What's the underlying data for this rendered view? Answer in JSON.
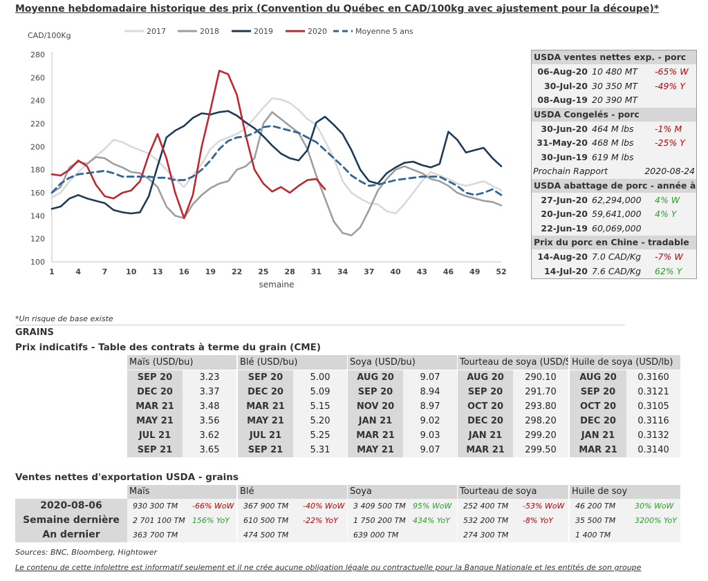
{
  "title": "Moyenne hebdomadaire historique des prix (Convention du Québec en CAD/100kg avec ajustement pour la découpe)*",
  "chart_data": {
    "type": "line",
    "ylabel": "CAD/100Kg",
    "xlabel": "semaine",
    "ylim": [
      100,
      280
    ],
    "yticks": [
      100,
      120,
      140,
      160,
      180,
      200,
      220,
      240,
      260,
      280
    ],
    "xlim": [
      1,
      52
    ],
    "xticks": [
      1,
      4,
      7,
      10,
      13,
      16,
      19,
      22,
      25,
      28,
      31,
      34,
      37,
      40,
      43,
      46,
      49,
      52
    ],
    "legend_position": "top",
    "grid": false,
    "series": [
      {
        "name": "2017",
        "color": "#d9d9d9",
        "dash": false,
        "x": [
          1,
          2,
          3,
          4,
          5,
          6,
          7,
          8,
          9,
          10,
          11,
          12,
          13,
          14,
          15,
          16,
          17,
          18,
          19,
          20,
          21,
          22,
          23,
          24,
          25,
          26,
          27,
          28,
          29,
          30,
          31,
          32,
          33,
          34,
          35,
          36,
          37,
          38,
          39,
          40,
          41,
          42,
          43,
          44,
          45,
          46,
          47,
          48,
          49,
          50,
          51,
          52
        ],
        "values": [
          156,
          160,
          170,
          178,
          185,
          192,
          198,
          206,
          204,
          200,
          197,
          194,
          188,
          180,
          172,
          165,
          175,
          185,
          198,
          205,
          208,
          211,
          216,
          225,
          234,
          242,
          241,
          238,
          232,
          224,
          219,
          205,
          190,
          170,
          160,
          155,
          151,
          150,
          144,
          142,
          150,
          160,
          170,
          178,
          175,
          172,
          168,
          166,
          168,
          170,
          166,
          162
        ]
      },
      {
        "name": "2018",
        "color": "#9e9e9e",
        "dash": false,
        "x": [
          1,
          2,
          3,
          4,
          5,
          6,
          7,
          8,
          9,
          10,
          11,
          12,
          13,
          14,
          15,
          16,
          17,
          18,
          19,
          20,
          21,
          22,
          23,
          24,
          25,
          26,
          27,
          28,
          29,
          30,
          31,
          32,
          33,
          34,
          35,
          36,
          37,
          38,
          39,
          40,
          41,
          42,
          43,
          44,
          45,
          46,
          47,
          48,
          49,
          50,
          51,
          52
        ],
        "values": [
          160,
          165,
          182,
          187,
          185,
          191,
          190,
          185,
          182,
          178,
          177,
          172,
          165,
          148,
          140,
          138,
          150,
          158,
          164,
          168,
          170,
          180,
          183,
          190,
          220,
          230,
          224,
          218,
          212,
          198,
          175,
          155,
          135,
          125,
          123,
          130,
          145,
          162,
          172,
          180,
          183,
          180,
          177,
          172,
          170,
          166,
          160,
          157,
          155,
          153,
          152,
          149
        ]
      },
      {
        "name": "2019",
        "color": "#1b3a57",
        "dash": false,
        "x": [
          1,
          2,
          3,
          4,
          5,
          6,
          7,
          8,
          9,
          10,
          11,
          12,
          13,
          14,
          15,
          16,
          17,
          18,
          19,
          20,
          21,
          22,
          23,
          24,
          25,
          26,
          27,
          28,
          29,
          30,
          31,
          32,
          33,
          34,
          35,
          36,
          37,
          38,
          39,
          40,
          41,
          42,
          43,
          44,
          45,
          46,
          47,
          48,
          49,
          50,
          51,
          52
        ],
        "values": [
          146,
          148,
          155,
          158,
          155,
          153,
          151,
          145,
          143,
          142,
          143,
          157,
          183,
          208,
          214,
          218,
          225,
          229,
          228,
          230,
          231,
          227,
          221,
          216,
          209,
          201,
          194,
          190,
          188,
          197,
          221,
          226,
          219,
          211,
          197,
          180,
          170,
          168,
          177,
          182,
          186,
          187,
          184,
          182,
          185,
          213,
          206,
          195,
          197,
          199,
          190,
          183
        ]
      },
      {
        "name": "2020",
        "color": "#c0262d",
        "dash": false,
        "x": [
          1,
          2,
          3,
          4,
          5,
          6,
          7,
          8,
          9,
          10,
          11,
          12,
          13,
          14,
          15,
          16,
          17,
          18,
          19,
          20,
          21,
          22,
          23,
          24,
          25,
          26,
          27,
          28,
          29,
          30,
          31,
          32
        ],
        "values": [
          176,
          175,
          180,
          188,
          183,
          167,
          157,
          155,
          160,
          162,
          170,
          193,
          211,
          190,
          160,
          138,
          158,
          200,
          232,
          266,
          263,
          245,
          210,
          180,
          168,
          161,
          165,
          160,
          166,
          171,
          172,
          163
        ]
      },
      {
        "name": "Moyenne 5 ans",
        "color": "#2f6594",
        "dash": true,
        "x": [
          1,
          2,
          3,
          4,
          5,
          6,
          7,
          8,
          9,
          10,
          11,
          12,
          13,
          14,
          15,
          16,
          17,
          18,
          19,
          20,
          21,
          22,
          23,
          24,
          25,
          26,
          27,
          28,
          29,
          30,
          31,
          32,
          33,
          34,
          35,
          36,
          37,
          38,
          39,
          40,
          41,
          42,
          43,
          44,
          45,
          46,
          47,
          48,
          49,
          50,
          51,
          52
        ],
        "values": [
          160,
          168,
          173,
          176,
          177,
          178,
          179,
          177,
          174,
          174,
          174,
          174,
          173,
          173,
          171,
          171,
          174,
          180,
          188,
          198,
          205,
          208,
          209,
          212,
          217,
          218,
          216,
          214,
          212,
          208,
          204,
          197,
          190,
          183,
          175,
          170,
          166,
          167,
          169,
          171,
          172,
          173,
          174,
          174,
          174,
          170,
          166,
          160,
          158,
          160,
          163,
          158
        ]
      }
    ]
  },
  "usda": {
    "sections": [
      {
        "heading": "USDA ventes nettes exp. - porc",
        "rows": [
          {
            "date": "06-Aug-20",
            "value": "10 480  MT",
            "change": "-65% W",
            "color": "red"
          },
          {
            "date": "30-Jul-20",
            "value": "30 350  MT",
            "change": "-49% Y",
            "color": "red"
          },
          {
            "date": "08-Aug-19",
            "value": "20 390  MT",
            "change": "",
            "color": ""
          }
        ]
      },
      {
        "heading": "USDA Congelés - porc",
        "rows": [
          {
            "date": "30-Jun-20",
            "value": "464 M lbs",
            "change": "-1% M",
            "color": "red"
          },
          {
            "date": "31-May-20",
            "value": "468 M lbs",
            "change": "-25% Y",
            "color": "red"
          },
          {
            "date": "30-Jun-19",
            "value": "619 M lbs",
            "change": "",
            "color": ""
          }
        ]
      },
      {
        "heading": "USDA abattage de porc - année à date",
        "rows": [
          {
            "date": "27-Jun-20",
            "value": "62,294,000",
            "change": "4% W",
            "color": "green"
          },
          {
            "date": "20-Jun-20",
            "value": "59,641,000",
            "change": "4% Y",
            "color": "green"
          },
          {
            "date": "22-Jun-19",
            "value": "60,069,000",
            "change": "",
            "color": ""
          }
        ]
      },
      {
        "heading": "Prix du porc en Chine - tradable",
        "rows": [
          {
            "date": "14-Aug-20",
            "value": "7.0 CAD/Kg",
            "change": "-7% W",
            "color": "red"
          },
          {
            "date": "14-Jul-20",
            "value": "7.6 CAD/Kg",
            "change": "62% Y",
            "color": "green"
          }
        ]
      }
    ],
    "next_report_label": "Prochain Rapport",
    "next_report_date": "2020-08-24"
  },
  "risk_note": "*Un risque de base existe",
  "grains_title": "GRAINS",
  "cme_title": "Prix indicatifs - Table des contrats à terme du grain (CME)",
  "cme_columns": [
    {
      "heading": "Maïs (USD/bu)",
      "rows": [
        [
          "SEP 20",
          "3.23"
        ],
        [
          "DEC 20",
          "3.37"
        ],
        [
          "MAR 21",
          "3.48"
        ],
        [
          "MAY 21",
          "3.56"
        ],
        [
          "JUL 21",
          "3.62"
        ],
        [
          "SEP 21",
          "3.65"
        ]
      ]
    },
    {
      "heading": "Blé (USD/bu)",
      "rows": [
        [
          "SEP 20",
          "5.00"
        ],
        [
          "DEC 20",
          "5.09"
        ],
        [
          "MAR 21",
          "5.15"
        ],
        [
          "MAY 21",
          "5.20"
        ],
        [
          "JUL 21",
          "5.25"
        ],
        [
          "SEP 21",
          "5.31"
        ]
      ]
    },
    {
      "heading": "Soya (USD/bu)",
      "rows": [
        [
          "AUG 20",
          "9.07"
        ],
        [
          "SEP 20",
          "8.94"
        ],
        [
          "NOV 20",
          "8.97"
        ],
        [
          "JAN 21",
          "9.02"
        ],
        [
          "MAR 21",
          "9.03"
        ],
        [
          "MAY 21",
          "9.07"
        ]
      ]
    },
    {
      "heading": "Tourteau de soya (USD/ST)",
      "rows": [
        [
          "AUG 20",
          "290.10"
        ],
        [
          "SEP 20",
          "291.70"
        ],
        [
          "OCT 20",
          "293.80"
        ],
        [
          "DEC 20",
          "298.20"
        ],
        [
          "JAN 21",
          "299.20"
        ],
        [
          "MAR 21",
          "299.50"
        ]
      ]
    },
    {
      "heading": "Huile de soya (USD/lb)",
      "rows": [
        [
          "AUG 20",
          "0.3160"
        ],
        [
          "SEP 20",
          "0.3121"
        ],
        [
          "OCT 20",
          "0.3105"
        ],
        [
          "DEC 20",
          "0.3116"
        ],
        [
          "JAN 21",
          "0.3132"
        ],
        [
          "MAR 21",
          "0.3140"
        ]
      ]
    }
  ],
  "exports_title": "Ventes nettes d'exportation USDA - grains",
  "exports": {
    "row_labels": [
      "2020-08-06",
      "Semaine dernière",
      "An dernier"
    ],
    "columns": [
      {
        "heading": "Maïs",
        "cells": [
          {
            "value": "930 300 TM",
            "change": "-66% WoW",
            "color": "red"
          },
          {
            "value": "2 701 100 TM",
            "change": "156% YoY",
            "color": "green"
          },
          {
            "value": "363 700 TM",
            "change": "",
            "color": ""
          }
        ]
      },
      {
        "heading": "Blé",
        "cells": [
          {
            "value": "367 900 TM",
            "change": "-40% WoW",
            "color": "red"
          },
          {
            "value": "610 500 TM",
            "change": "-22% YoY",
            "color": "red"
          },
          {
            "value": "474 500 TM",
            "change": "",
            "color": ""
          }
        ]
      },
      {
        "heading": "Soya",
        "cells": [
          {
            "value": "3 409 500 TM",
            "change": "95% WoW",
            "color": "green"
          },
          {
            "value": "1 750 200 TM",
            "change": "434% YoY",
            "color": "green"
          },
          {
            "value": "639 000 TM",
            "change": "",
            "color": ""
          }
        ]
      },
      {
        "heading": "Tourteau de soya",
        "cells": [
          {
            "value": "252 400 TM",
            "change": "-53% WoW",
            "color": "red"
          },
          {
            "value": "532 200 TM",
            "change": "-8% YoY",
            "color": "red"
          },
          {
            "value": "274 300 TM",
            "change": "",
            "color": ""
          }
        ]
      },
      {
        "heading": "Huile de soy",
        "cells": [
          {
            "value": "46 200 TM",
            "change": "30% WoW",
            "color": "green"
          },
          {
            "value": "35 500 TM",
            "change": "3200% YoY",
            "color": "green"
          },
          {
            "value": "1 400 TM",
            "change": "",
            "color": ""
          }
        ]
      }
    ]
  },
  "sources": "Sources: BNC, Bloomberg, Hightower",
  "disclaimer": "Le contenu de cette infolettre est informatif seulement et il ne crée aucune obligation légale ou contractuelle pour la Banque Nationale et les entités de son groupe"
}
